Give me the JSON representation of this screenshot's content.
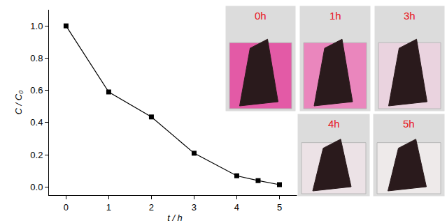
{
  "chart_data": {
    "type": "line",
    "x_label": "t / h",
    "y_label": "C / C₀",
    "x": [
      0,
      1,
      2,
      3,
      4,
      4.5,
      5
    ],
    "values": [
      1.0,
      0.59,
      0.435,
      0.21,
      0.07,
      0.04,
      0.015
    ],
    "color": "#000000",
    "marker": "square",
    "line_style": "solid",
    "xlim": [
      -0.4,
      5.5
    ],
    "xticks": [
      0,
      1,
      2,
      3,
      4,
      5
    ],
    "ylim": [
      -0.05,
      1.1
    ],
    "yticks": [
      {
        "value": 0,
        "label": "0.0"
      },
      0.2,
      0.4,
      0.6,
      0.8,
      {
        "value": 1,
        "label": "1.0"
      }
    ],
    "grid": false,
    "annotations": [
      "0h",
      "1h",
      "3h",
      "4h",
      "5h"
    ]
  }
}
